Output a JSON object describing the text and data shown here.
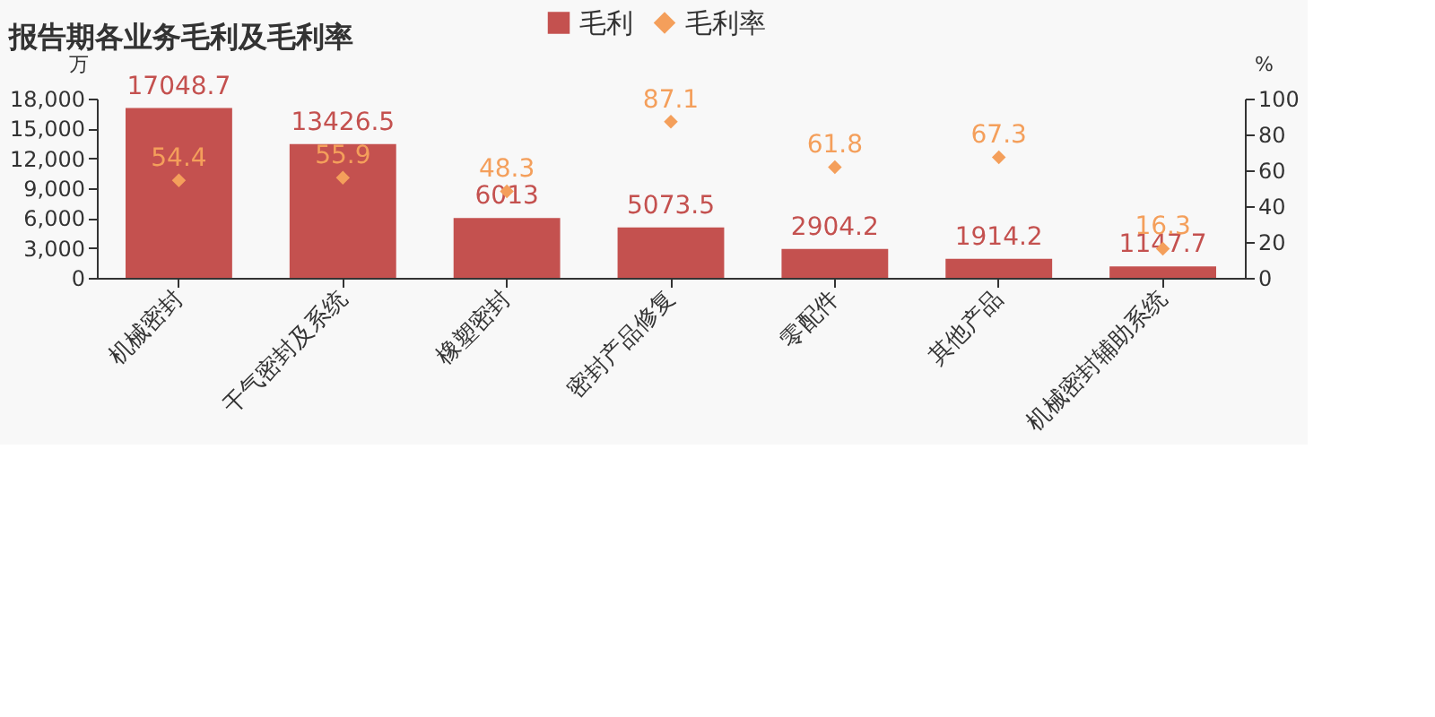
{
  "chart_data": {
    "type": "bar",
    "title": "报告期各业务毛利及毛利率",
    "categories": [
      "机械密封",
      "干气密封及系统",
      "橡塑密封",
      "密封产品修复",
      "零配件",
      "其他产品",
      "机械密封辅助系统"
    ],
    "series": [
      {
        "name": "毛利",
        "type": "bar",
        "color": "#c4514f",
        "values": [
          17048.7,
          13426.5,
          6013,
          5073.5,
          2904.2,
          1914.2,
          1147.7
        ]
      },
      {
        "name": "毛利率",
        "type": "scatter",
        "axis": "y2",
        "marker": "diamond",
        "color": "#f49f5b",
        "values": [
          54.4,
          55.9,
          48.3,
          87.1,
          61.8,
          67.3,
          16.3
        ]
      }
    ],
    "ylabel": "万",
    "y2label": "%",
    "ylim": [
      0,
      18000
    ],
    "yticks": [
      0,
      {
        "value": 3000,
        "label": "3,000"
      },
      {
        "value": 6000,
        "label": "6,000"
      },
      {
        "value": 9000,
        "label": "9,000"
      },
      {
        "value": 12000,
        "label": "12,000"
      },
      {
        "value": 15000,
        "label": "15,000"
      },
      {
        "value": 18000,
        "label": "18,000"
      }
    ],
    "y2lim": [
      0,
      100
    ],
    "y2ticks": [
      0,
      20,
      40,
      60,
      80,
      100
    ],
    "data_labels": true,
    "legend": "top",
    "grid": false
  }
}
